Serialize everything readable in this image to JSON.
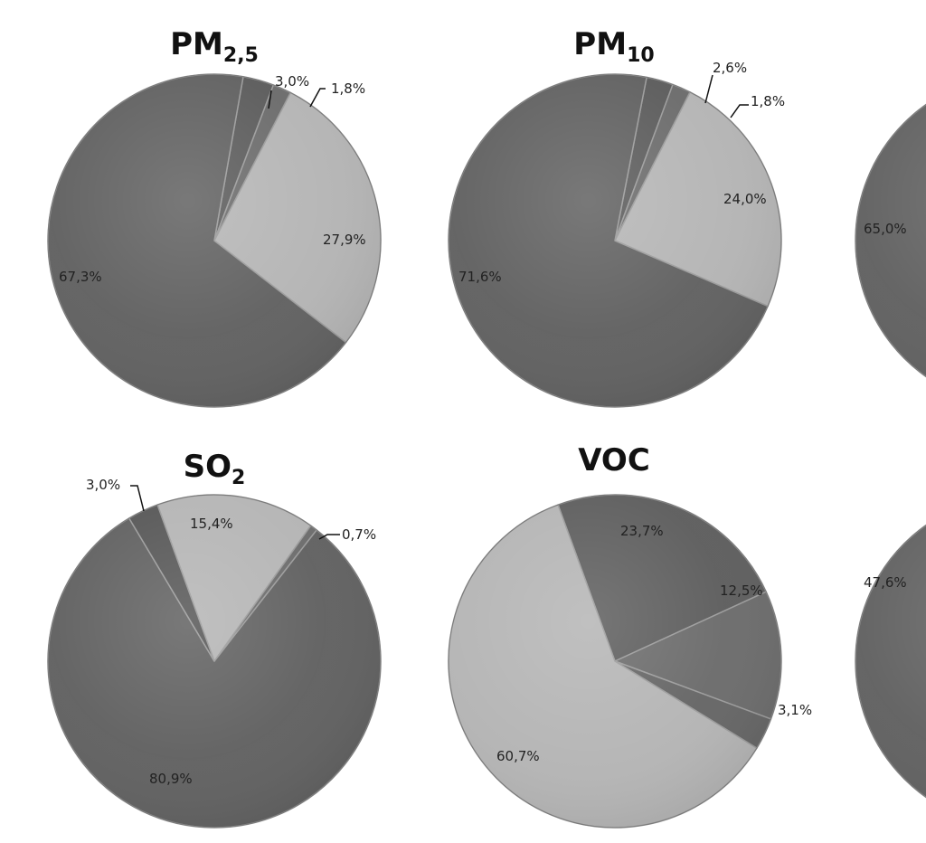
{
  "chart_data": [
    {
      "type": "pie",
      "title": "PM",
      "title_sub": "2,5",
      "slices": [
        {
          "value": 3.0,
          "label": "3,0%",
          "color": "#5a5a5a"
        },
        {
          "value": 1.8,
          "label": "1,8%",
          "color": "#6a6a6a"
        },
        {
          "value": 27.9,
          "label": "27,9%",
          "color": "#b4b4b4"
        },
        {
          "value": 67.3,
          "label": "67,3%",
          "color": "#5f5f5f"
        }
      ]
    },
    {
      "type": "pie",
      "title": "PM",
      "title_sub": "10",
      "slices": [
        {
          "value": 2.6,
          "label": "2,6%",
          "color": "#5a5a5a"
        },
        {
          "value": 1.8,
          "label": "1,8%",
          "color": "#6a6a6a"
        },
        {
          "value": 24.0,
          "label": "24,0%",
          "color": "#b4b4b4"
        },
        {
          "value": 71.6,
          "label": "71,6%",
          "color": "#5f5f5f"
        }
      ]
    },
    {
      "type": "pie",
      "title": "",
      "title_sub": "",
      "slices": [
        {
          "value": 65.0,
          "label": "65,0%",
          "color": "#5f5f5f"
        }
      ]
    },
    {
      "type": "pie",
      "title": "SO",
      "title_sub": "2",
      "slices": [
        {
          "value": 15.4,
          "label": "15,4%",
          "color": "#b4b4b4"
        },
        {
          "value": 0.7,
          "label": "0,7%",
          "color": "#6a6a6a"
        },
        {
          "value": 80.9,
          "label": "80,9%",
          "color": "#5f5f5f"
        },
        {
          "value": 3.0,
          "label": "3,0%",
          "color": "#555555"
        }
      ]
    },
    {
      "type": "pie",
      "title": "VOC",
      "title_sub": "",
      "slices": [
        {
          "value": 23.7,
          "label": "23,7%",
          "color": "#5c5c5c"
        },
        {
          "value": 12.5,
          "label": "12,5%",
          "color": "#6a6a6a"
        },
        {
          "value": 0.0,
          "label": "",
          "color": "#787878"
        },
        {
          "value": 3.1,
          "label": "3,1%",
          "color": "#646464"
        },
        {
          "value": 60.7,
          "label": "60,7%",
          "color": "#b4b4b4"
        }
      ]
    },
    {
      "type": "pie",
      "title": "",
      "title_sub": "",
      "slices": [
        {
          "value": 47.6,
          "label": "47,6%",
          "color": "#5f5f5f"
        }
      ]
    }
  ]
}
